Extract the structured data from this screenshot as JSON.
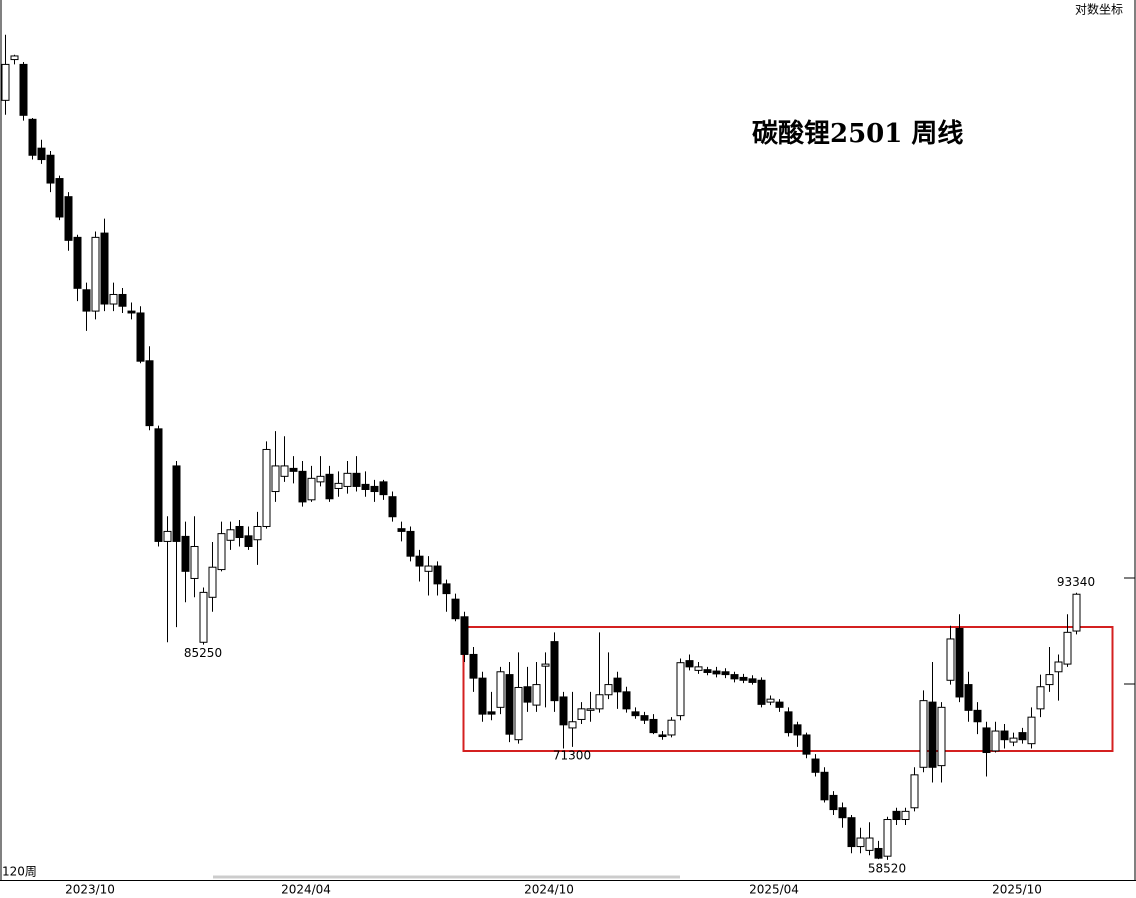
{
  "chart_data": {
    "type": "candlestick",
    "title": "碳酸锂2501  周线",
    "scale_label": "对数坐标",
    "period_label": "120周",
    "log_scale": true,
    "up_color": "#ffffff",
    "down_color": "#000000",
    "ylim": [
      56500,
      263000
    ],
    "categories": [
      null,
      null,
      null,
      null,
      null,
      null,
      null,
      null,
      null,
      "2023/10",
      null,
      null,
      null,
      null,
      null,
      null,
      null,
      null,
      null,
      null,
      null,
      null,
      null,
      null,
      null,
      null,
      null,
      null,
      null,
      null,
      null,
      null,
      null,
      "2024/04",
      null,
      null,
      null,
      null,
      null,
      null,
      null,
      null,
      null,
      null,
      null,
      null,
      null,
      null,
      null,
      null,
      null,
      null,
      null,
      null,
      null,
      null,
      null,
      null,
      null,
      null,
      "2024/10",
      null,
      null,
      null,
      null,
      null,
      null,
      null,
      null,
      null,
      null,
      null,
      null,
      null,
      null,
      null,
      null,
      null,
      null,
      null,
      null,
      null,
      null,
      null,
      null,
      "2025/04",
      null,
      null,
      null,
      null,
      null,
      null,
      null,
      null,
      null,
      null,
      null,
      null,
      null,
      null,
      null,
      null,
      null,
      null,
      null,
      null,
      null,
      null,
      null,
      null,
      null,
      null,
      "2025/10",
      null,
      null,
      null,
      null,
      null,
      null,
      null
    ],
    "open": [
      220700,
      237000,
      235000,
      213500,
      203000,
      200500,
      192500,
      186500,
      173700,
      158500,
      152700,
      175000,
      154600,
      157200,
      152700,
      152200,
      140000,
      124300,
      102100,
      116500,
      103000,
      95700,
      85600,
      92600,
      97200,
      102300,
      104800,
      103100,
      102400,
      104800,
      111400,
      114400,
      116000,
      115400,
      109800,
      113300,
      114800,
      112000,
      112400,
      115000,
      112800,
      112400,
      113300,
      110400,
      104400,
      103900,
      99500,
      96900,
      97800,
      94800,
      92300,
      89500,
      83800,
      80400,
      75800,
      76400,
      80900,
      72200,
      79200,
      76700,
      82100,
      85700,
      77800,
      73700,
      74800,
      76000,
      76200,
      78100,
      80400,
      78500,
      75800,
      75300,
      74800,
      72800,
      72800,
      75300,
      82900,
      81500,
      81600,
      81400,
      81300,
      80900,
      80500,
      80300,
      80100,
      77100,
      77100,
      75800,
      74100,
      72800,
      69800,
      68200,
      65500,
      64100,
      63000,
      59900,
      59500,
      59700,
      58900,
      63700,
      62800,
      64100,
      68800,
      77100,
      69000,
      80100,
      87700,
      79500,
      76000,
      73700,
      70800,
      73300,
      71900,
      73100,
      71700,
      76200,
      79500,
      81300,
      82400,
      87300
    ],
    "high": [
      247500,
      239000,
      236000,
      214000,
      206000,
      202000,
      193500,
      188000,
      174500,
      160500,
      175500,
      179500,
      160500,
      159000,
      155000,
      154000,
      143600,
      125000,
      106700,
      117500,
      105700,
      106700,
      94200,
      102000,
      105700,
      105700,
      106000,
      104800,
      107500,
      121600,
      123800,
      122700,
      118500,
      117500,
      116500,
      118500,
      116500,
      115400,
      117500,
      118500,
      115400,
      113700,
      113700,
      111400,
      105700,
      104800,
      100600,
      99500,
      98600,
      95500,
      93200,
      90300,
      84900,
      81300,
      78500,
      82000,
      82700,
      84100,
      82000,
      82700,
      84100,
      87100,
      78500,
      78500,
      77100,
      78500,
      87100,
      84100,
      81300,
      79200,
      76400,
      75800,
      75500,
      73300,
      75100,
      83200,
      83800,
      82700,
      82000,
      82000,
      81800,
      81300,
      81000,
      80800,
      80500,
      78000,
      77500,
      76400,
      74500,
      73100,
      70400,
      68800,
      66000,
      64700,
      63300,
      61900,
      62500,
      60500,
      63100,
      64100,
      64100,
      68800,
      78700,
      82700,
      77100,
      88100,
      89900,
      81300,
      77100,
      74500,
      74500,
      74200,
      73100,
      73700,
      76400,
      80900,
      84900,
      83800,
      89900,
      93340
    ],
    "low": [
      215200,
      235000,
      213000,
      199000,
      197500,
      188000,
      179000,
      169700,
      155400,
      147500,
      150500,
      152700,
      152700,
      152200,
      150500,
      139400,
      124000,
      101200,
      85600,
      87900,
      91800,
      92600,
      85250,
      90300,
      96900,
      100600,
      101200,
      100600,
      98000,
      104400,
      109400,
      113300,
      113000,
      108500,
      109400,
      112400,
      109400,
      110400,
      111000,
      111400,
      110400,
      109400,
      109800,
      105700,
      102100,
      98600,
      95200,
      92900,
      92900,
      90300,
      88800,
      82700,
      78500,
      74500,
      74700,
      75500,
      71900,
      71700,
      75800,
      75800,
      76400,
      75800,
      71100,
      71300,
      74200,
      74500,
      75700,
      77500,
      76200,
      75700,
      74900,
      74200,
      72900,
      72200,
      72500,
      74700,
      81500,
      81000,
      80800,
      80500,
      80400,
      79800,
      79700,
      79500,
      76400,
      76700,
      75800,
      72600,
      71300,
      69900,
      67700,
      64700,
      63300,
      61900,
      59200,
      59200,
      59000,
      58600,
      58520,
      62200,
      62200,
      63700,
      68200,
      67000,
      67000,
      79500,
      77100,
      74500,
      72900,
      67700,
      70600,
      71100,
      71400,
      71700,
      71100,
      75100,
      78500,
      77300,
      82000,
      86800
    ],
    "close": [
      235000,
      238500,
      215000,
      200500,
      199000,
      191000,
      180000,
      172800,
      158900,
      152700,
      173700,
      154600,
      157200,
      154000,
      152200,
      139900,
      125000,
      102100,
      103900,
      102100,
      96900,
      101200,
      93400,
      97600,
      103500,
      104200,
      102800,
      101200,
      104800,
      119900,
      116500,
      116500,
      115400,
      109400,
      114000,
      114400,
      110000,
      113000,
      115000,
      112400,
      111800,
      111400,
      110800,
      106600,
      103900,
      99500,
      97800,
      97800,
      94800,
      93200,
      89200,
      83800,
      80400,
      75500,
      75500,
      81300,
      72900,
      79100,
      77100,
      79500,
      82400,
      77300,
      74100,
      74500,
      76200,
      76200,
      78100,
      79500,
      78500,
      76200,
      75300,
      74700,
      73100,
      72600,
      74700,
      82600,
      82000,
      82000,
      81200,
      81000,
      80900,
      80300,
      80100,
      79800,
      76800,
      77500,
      76400,
      73100,
      72800,
      70400,
      68200,
      65000,
      63900,
      63000,
      59900,
      60800,
      60800,
      58700,
      62800,
      62800,
      63700,
      67900,
      77300,
      68800,
      76400,
      86100,
      77800,
      76000,
      74500,
      70600,
      73300,
      72200,
      72400,
      72200,
      75100,
      79200,
      80900,
      82700,
      87100,
      93100
    ],
    "annotations": [
      {
        "x": 22,
        "value": 85250,
        "position": "below"
      },
      {
        "x": 63,
        "value": 71300,
        "position": "below"
      },
      {
        "x": 98,
        "value": 58520,
        "position": "below"
      },
      {
        "x": 119,
        "value": 93340,
        "position": "above"
      }
    ]
  }
}
